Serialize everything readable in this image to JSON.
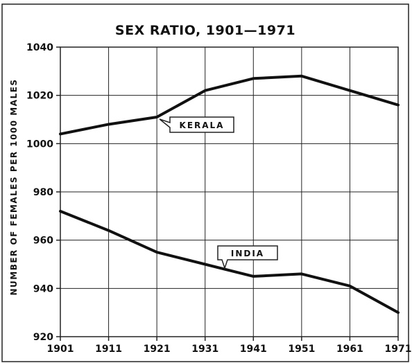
{
  "chart_data": {
    "type": "line",
    "title": "SEX RATIO, 1901—1971",
    "xlabel": "",
    "ylabel": "NUMBER OF FEMALES PER 1000 MALES",
    "x": [
      "1901",
      "1911",
      "1921",
      "1931",
      "1941",
      "1951",
      "1961",
      "1971"
    ],
    "xlim": [
      1901,
      1971
    ],
    "ylim": [
      920,
      1040
    ],
    "yticks": [
      920,
      940,
      960,
      980,
      1000,
      1020,
      1040
    ],
    "grid": true,
    "legend": "none",
    "series": [
      {
        "name": "KERALA",
        "values": [
          1004,
          1008,
          1011,
          1022,
          1027,
          1028,
          1022,
          1016
        ]
      },
      {
        "name": "INDIA",
        "values": [
          972,
          964,
          955,
          950,
          945,
          946,
          941,
          930
        ]
      }
    ]
  },
  "colors": {
    "line": "#111111",
    "grid": "#222222",
    "background": "#ffffff"
  }
}
